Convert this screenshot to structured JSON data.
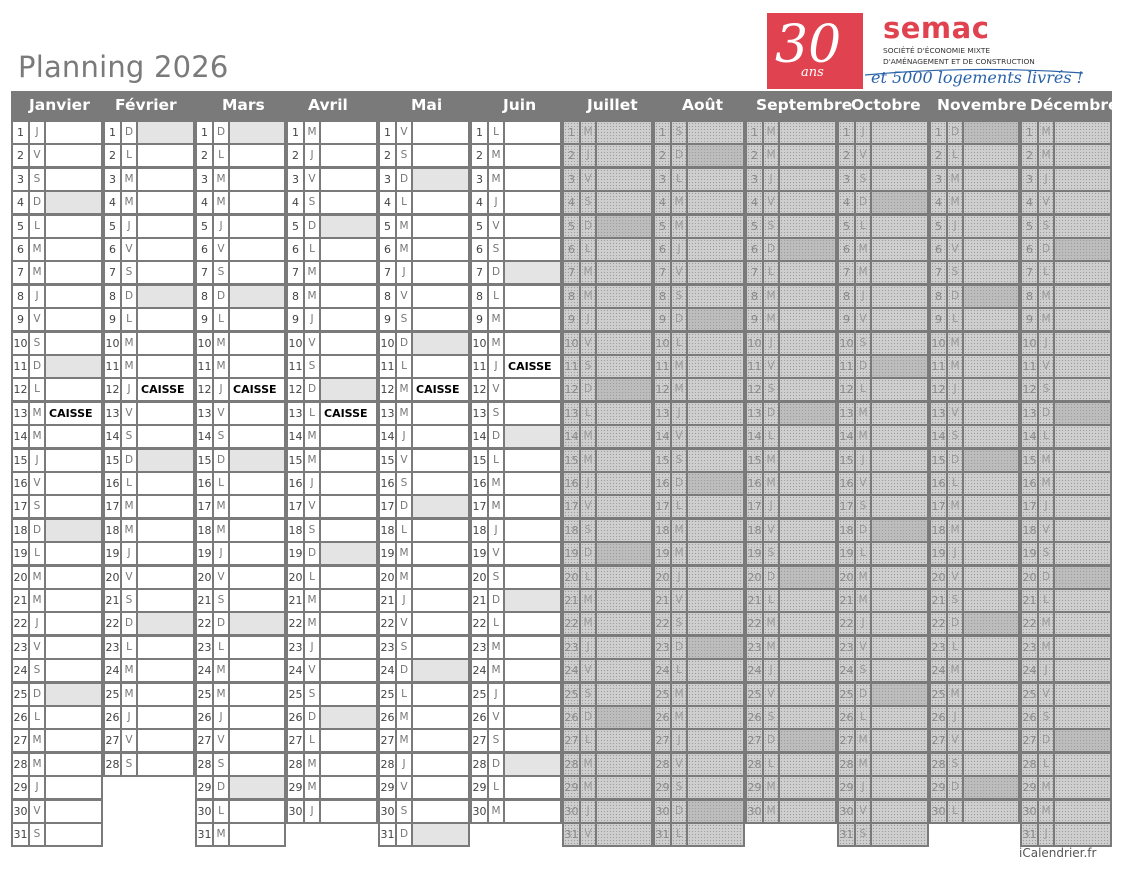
{
  "title": "Planning 2026",
  "logo": {
    "number": "30",
    "ans": "ans",
    "name": "semac",
    "desc_line1": "SOCIÉTÉ D'ÉCONOMIE MIXTE",
    "desc_line2": "D'AMÉNAGEMENT ET DE CONSTRUCTION",
    "slogan": "et 5000 logements livrés !",
    "colors": {
      "red": "#e0434f",
      "blue": "#2b63a8"
    }
  },
  "footer": "iCalendrier.fr",
  "colors": {
    "header": "#7a7a7a",
    "weekend": "#e4e4e4",
    "dimmed": "#cfcfcf"
  },
  "months": [
    {
      "name": "Janvier",
      "dimmed": false,
      "days": [
        "J",
        "V",
        "S",
        "D",
        "L",
        "M",
        "M",
        "J",
        "V",
        "S",
        "D",
        "L",
        "M",
        "M",
        "J",
        "V",
        "S",
        "D",
        "L",
        "M",
        "M",
        "J",
        "V",
        "S",
        "D",
        "L",
        "M",
        "M",
        "J",
        "V",
        "S"
      ],
      "events": {
        "13": "CAISSE"
      }
    },
    {
      "name": "Février",
      "dimmed": false,
      "days": [
        "D",
        "L",
        "M",
        "M",
        "J",
        "V",
        "S",
        "D",
        "L",
        "M",
        "M",
        "J",
        "V",
        "S",
        "D",
        "L",
        "M",
        "M",
        "J",
        "V",
        "S",
        "D",
        "L",
        "M",
        "M",
        "J",
        "V",
        "S"
      ],
      "events": {
        "12": "CAISSE"
      }
    },
    {
      "name": "Mars",
      "dimmed": false,
      "days": [
        "D",
        "L",
        "M",
        "M",
        "J",
        "V",
        "S",
        "D",
        "L",
        "M",
        "M",
        "J",
        "V",
        "S",
        "D",
        "L",
        "M",
        "M",
        "J",
        "V",
        "S",
        "D",
        "L",
        "M",
        "M",
        "J",
        "V",
        "S",
        "D",
        "L",
        "M"
      ],
      "events": {
        "12": "CAISSE"
      }
    },
    {
      "name": "Avril",
      "dimmed": false,
      "days": [
        "M",
        "J",
        "V",
        "S",
        "D",
        "L",
        "M",
        "M",
        "J",
        "V",
        "S",
        "D",
        "L",
        "M",
        "M",
        "J",
        "V",
        "S",
        "D",
        "L",
        "M",
        "M",
        "J",
        "V",
        "S",
        "D",
        "L",
        "M",
        "M",
        "J"
      ],
      "events": {
        "13": "CAISSE"
      }
    },
    {
      "name": "Mai",
      "dimmed": false,
      "days": [
        "V",
        "S",
        "D",
        "L",
        "M",
        "M",
        "J",
        "V",
        "S",
        "D",
        "L",
        "M",
        "M",
        "J",
        "V",
        "S",
        "D",
        "L",
        "M",
        "M",
        "J",
        "V",
        "S",
        "D",
        "L",
        "M",
        "M",
        "J",
        "V",
        "S",
        "D"
      ],
      "events": {
        "12": "CAISSE"
      }
    },
    {
      "name": "Juin",
      "dimmed": false,
      "days": [
        "L",
        "M",
        "M",
        "J",
        "V",
        "S",
        "D",
        "L",
        "M",
        "M",
        "J",
        "V",
        "S",
        "D",
        "L",
        "M",
        "M",
        "J",
        "V",
        "S",
        "D",
        "L",
        "M",
        "M",
        "J",
        "V",
        "S",
        "D",
        "L",
        "M"
      ],
      "events": {
        "11": "CAISSE"
      }
    },
    {
      "name": "Juillet",
      "dimmed": true,
      "days": [
        "M",
        "J",
        "V",
        "S",
        "D",
        "L",
        "M",
        "M",
        "J",
        "V",
        "S",
        "D",
        "L",
        "M",
        "M",
        "J",
        "V",
        "S",
        "D",
        "L",
        "M",
        "M",
        "J",
        "V",
        "S",
        "D",
        "L",
        "M",
        "M",
        "J",
        "V"
      ],
      "events": {}
    },
    {
      "name": "Août",
      "dimmed": true,
      "days": [
        "S",
        "D",
        "L",
        "M",
        "M",
        "J",
        "V",
        "S",
        "D",
        "L",
        "M",
        "M",
        "J",
        "V",
        "S",
        "D",
        "L",
        "M",
        "M",
        "J",
        "V",
        "S",
        "D",
        "L",
        "M",
        "M",
        "J",
        "V",
        "S",
        "D",
        "L"
      ],
      "events": {}
    },
    {
      "name": "Septembre",
      "dimmed": true,
      "days": [
        "M",
        "M",
        "J",
        "V",
        "S",
        "D",
        "L",
        "M",
        "M",
        "J",
        "V",
        "S",
        "D",
        "L",
        "M",
        "M",
        "J",
        "V",
        "S",
        "D",
        "L",
        "M",
        "M",
        "J",
        "V",
        "S",
        "D",
        "L",
        "M",
        "M"
      ],
      "events": {}
    },
    {
      "name": "Octobre",
      "dimmed": true,
      "days": [
        "J",
        "V",
        "S",
        "D",
        "L",
        "M",
        "M",
        "J",
        "V",
        "S",
        "D",
        "L",
        "M",
        "M",
        "J",
        "V",
        "S",
        "D",
        "L",
        "M",
        "M",
        "J",
        "V",
        "S",
        "D",
        "L",
        "M",
        "M",
        "J",
        "V",
        "S"
      ],
      "events": {}
    },
    {
      "name": "Novembre",
      "dimmed": true,
      "days": [
        "D",
        "L",
        "M",
        "M",
        "J",
        "V",
        "S",
        "D",
        "L",
        "M",
        "M",
        "J",
        "V",
        "S",
        "D",
        "L",
        "M",
        "M",
        "J",
        "V",
        "S",
        "D",
        "L",
        "M",
        "M",
        "J",
        "V",
        "S",
        "D",
        "L"
      ],
      "events": {}
    },
    {
      "name": "Décembre",
      "dimmed": true,
      "days": [
        "M",
        "M",
        "J",
        "V",
        "S",
        "D",
        "L",
        "M",
        "M",
        "J",
        "V",
        "S",
        "D",
        "L",
        "M",
        "M",
        "J",
        "V",
        "S",
        "D",
        "L",
        "M",
        "M",
        "J",
        "V",
        "S",
        "D",
        "L",
        "M",
        "M",
        "J"
      ],
      "events": {}
    }
  ]
}
